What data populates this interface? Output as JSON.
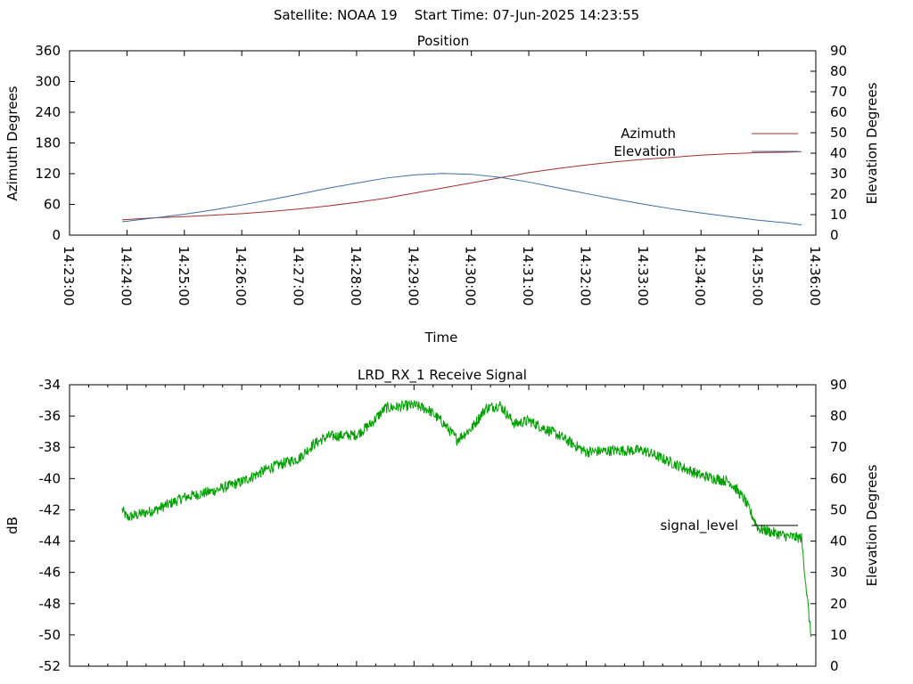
{
  "header": {
    "title": "Satellite: NOAA 19    Start Time: 07-Jun-2025 14:23:55"
  },
  "chart_data": [
    {
      "type": "line",
      "title": "Position",
      "xlabel": "Time",
      "ylabel": "Azimuth Degrees",
      "y2label": "Elevation Degrees",
      "xlim": [
        "14:23:00",
        "14:36:00"
      ],
      "x_ticks": [
        "14:23:00",
        "14:24:00",
        "14:25:00",
        "14:26:00",
        "14:27:00",
        "14:28:00",
        "14:29:00",
        "14:30:00",
        "14:31:00",
        "14:32:00",
        "14:33:00",
        "14:34:00",
        "14:35:00",
        "14:36:00"
      ],
      "ylim": [
        0,
        360
      ],
      "y_ticks": [
        "0",
        "60",
        "120",
        "180",
        "240",
        "300",
        "360"
      ],
      "y2lim": [
        0,
        90
      ],
      "y2_ticks": [
        "0",
        "10",
        "20",
        "30",
        "40",
        "50",
        "60",
        "70",
        "80",
        "90"
      ],
      "grid": false,
      "legend_position": "right",
      "x": [
        "14:23:55",
        "14:24:30",
        "14:25:00",
        "14:25:30",
        "14:26:00",
        "14:26:30",
        "14:27:00",
        "14:27:30",
        "14:28:00",
        "14:28:30",
        "14:29:00",
        "14:29:30",
        "14:30:00",
        "14:30:30",
        "14:31:00",
        "14:31:30",
        "14:32:00",
        "14:32:30",
        "14:33:00",
        "14:33:30",
        "14:34:00",
        "14:34:30",
        "14:35:00",
        "14:35:30",
        "14:35:45"
      ],
      "series": [
        {
          "name": "Azimuth",
          "axis": "left",
          "color": "#a0302f",
          "values": [
            30,
            34,
            36,
            39,
            42,
            46,
            51,
            57,
            64,
            72,
            82,
            92,
            102,
            112,
            122,
            130,
            137,
            143,
            148,
            152,
            156,
            159,
            161,
            162,
            163
          ]
        },
        {
          "name": "Elevation",
          "axis": "right",
          "color": "#3c6e9e",
          "values": [
            6.5,
            8.5,
            10.2,
            12.3,
            14.7,
            17.3,
            20,
            22.9,
            25.4,
            27.8,
            29.4,
            30.1,
            29.7,
            28.2,
            25.9,
            23.1,
            20.3,
            17.6,
            15.1,
            12.8,
            10.8,
            9.0,
            7.3,
            5.9,
            5.0
          ]
        }
      ]
    },
    {
      "type": "line",
      "title": "LRD_RX_1 Receive Signal",
      "ylabel": "dB",
      "y2label": "Elevation Degrees",
      "xlim": [
        "14:23:00",
        "14:36:00"
      ],
      "ylim": [
        -52,
        -34
      ],
      "y_ticks": [
        "-52",
        "-50",
        "-48",
        "-46",
        "-44",
        "-42",
        "-40",
        "-38",
        "-36",
        "-34"
      ],
      "y2lim": [
        0,
        90
      ],
      "y2_ticks": [
        "0",
        "10",
        "20",
        "30",
        "40",
        "50",
        "60",
        "70",
        "80",
        "90"
      ],
      "grid": false,
      "legend_position": "right",
      "x": [
        "14:23:55",
        "14:24:00",
        "14:24:30",
        "14:25:00",
        "14:25:30",
        "14:26:00",
        "14:26:30",
        "14:27:00",
        "14:27:15",
        "14:27:30",
        "14:28:00",
        "14:28:15",
        "14:28:30",
        "14:28:45",
        "14:29:00",
        "14:29:15",
        "14:29:30",
        "14:29:45",
        "14:30:00",
        "14:30:15",
        "14:30:30",
        "14:30:45",
        "14:31:00",
        "14:31:30",
        "14:32:00",
        "14:32:30",
        "14:33:00",
        "14:33:30",
        "14:34:00",
        "14:34:30",
        "14:34:45",
        "14:35:00",
        "14:35:30",
        "14:35:45",
        "14:35:50",
        "14:35:55"
      ],
      "series": [
        {
          "name": "signal_level",
          "axis": "left",
          "color": "#00a000",
          "values": [
            -42.0,
            -42.5,
            -42.0,
            -41.2,
            -40.8,
            -40.2,
            -39.3,
            -38.7,
            -37.8,
            -37.3,
            -37.2,
            -36.5,
            -35.5,
            -35.4,
            -35.3,
            -35.6,
            -36.4,
            -37.5,
            -36.8,
            -35.5,
            -35.3,
            -36.5,
            -36.3,
            -37.2,
            -38.3,
            -38.2,
            -38.2,
            -39.0,
            -39.8,
            -40.2,
            -41.3,
            -43.2,
            -43.7,
            -43.8,
            -47.0,
            -50.1
          ]
        }
      ]
    }
  ]
}
